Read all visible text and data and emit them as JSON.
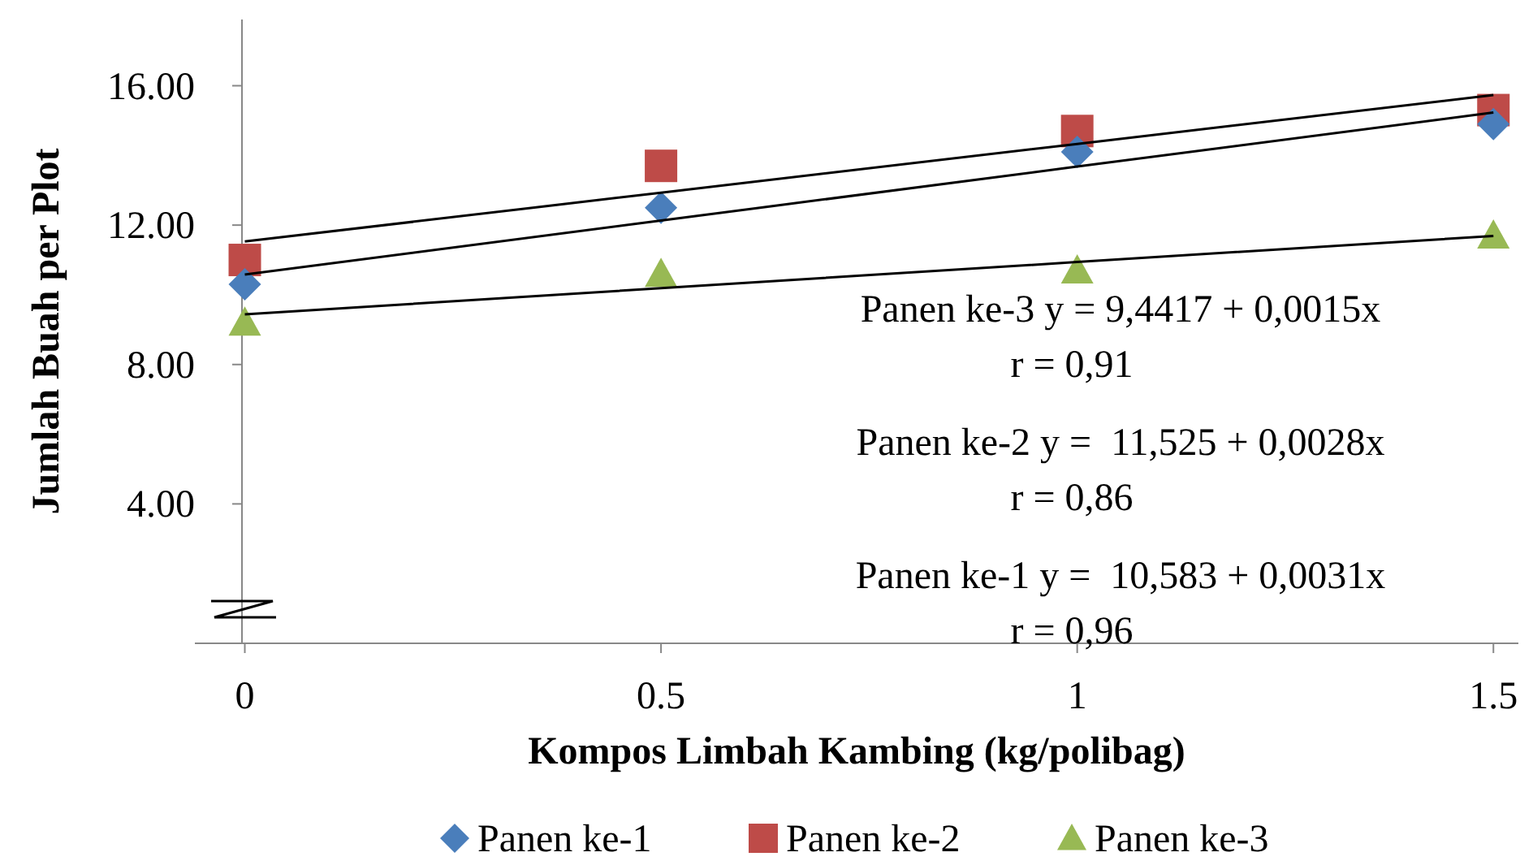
{
  "chart_data": {
    "type": "scatter",
    "xlabel": "Kompos Limbah Kambing (kg/polibag)",
    "ylabel": "Jumlah Buah per Plot",
    "x": [
      0,
      0.5,
      1,
      1.5
    ],
    "xlim": [
      -0.06,
      1.53
    ],
    "xticks": [
      0,
      0.5,
      1,
      1.5
    ],
    "ylim": [
      0,
      17.9
    ],
    "yticks": [
      {
        "value": 4,
        "label": "4.00"
      },
      {
        "value": 8,
        "label": "8.00"
      },
      {
        "value": 12,
        "label": "12.00"
      },
      {
        "value": 16,
        "label": "16.00"
      }
    ],
    "series": [
      {
        "name": "Panen ke-1",
        "color": "#4a7ebb",
        "marker": "diamond",
        "values": [
          10.3,
          12.5,
          14.1,
          14.9
        ]
      },
      {
        "name": "Panen ke-2",
        "color": "#be4b48",
        "marker": "square",
        "values": [
          11.0,
          13.7,
          14.7,
          15.3
        ]
      },
      {
        "name": "Panen ke-3",
        "color": "#98b954",
        "marker": "triangle",
        "values": [
          9.2,
          10.6,
          10.7,
          11.7
        ]
      },
      {
        "type": "line",
        "color": "#000000",
        "values": [
          10.58,
          12.13,
          13.68,
          15.23
        ]
      },
      {
        "type": "line",
        "color": "#000000",
        "values": [
          11.53,
          12.93,
          14.33,
          15.73
        ]
      },
      {
        "type": "line",
        "color": "#000000",
        "values": [
          9.44,
          10.19,
          10.94,
          11.69
        ]
      }
    ],
    "annotations": [
      "Panen ke-3 y = 9,4417 + 0,0015x",
      "r = 0,91",
      "Panen ke-2 y =  11,525 + 0,0028x",
      "r = 0,86",
      "Panen ke-1 y =  10,583 + 0,0031x",
      "r = 0,96"
    ],
    "grid": false,
    "legend": "bottom"
  }
}
